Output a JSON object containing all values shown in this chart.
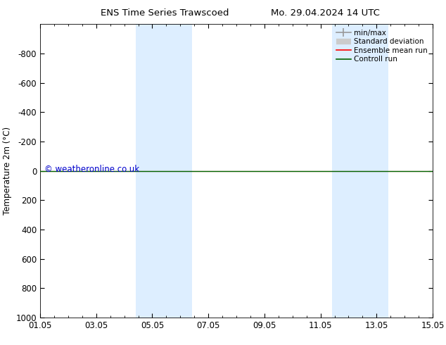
{
  "title_left": "ENS Time Series Trawscoed",
  "title_right": "Mo. 29.04.2024 14 UTC",
  "ylabel": "Temperature 2m (°C)",
  "watermark": "© weatheronline.co.uk",
  "watermark_color": "#0000cc",
  "xtick_labels": [
    "01.05",
    "03.05",
    "05.05",
    "07.05",
    "09.05",
    "11.05",
    "13.05",
    "15.05"
  ],
  "xtick_positions": [
    0,
    2,
    4,
    6,
    8,
    10,
    12,
    14
  ],
  "ylim_bottom": -1000,
  "ylim_top": 1000,
  "ytick_positions": [
    -800,
    -600,
    -400,
    -200,
    0,
    200,
    400,
    600,
    800,
    1000
  ],
  "ytick_labels": [
    "-800",
    "-600",
    "-400",
    "-200",
    "0",
    "200",
    "400",
    "600",
    "800",
    "1000"
  ],
  "shaded_regions": [
    {
      "x_start": 3.42,
      "x_end": 5.42
    },
    {
      "x_start": 10.42,
      "x_end": 12.42
    }
  ],
  "shaded_color": "#ddeeff",
  "control_run_color": "#006400",
  "ensemble_mean_color": "#ff0000",
  "min_max_color": "#999999",
  "std_dev_color": "#cccccc",
  "legend_labels": [
    "min/max",
    "Standard deviation",
    "Ensemble mean run",
    "Controll run"
  ],
  "legend_colors": [
    "#999999",
    "#cccccc",
    "#ff0000",
    "#006400"
  ],
  "background_color": "#ffffff",
  "font_size": 8.5,
  "title_font_size": 9.5
}
